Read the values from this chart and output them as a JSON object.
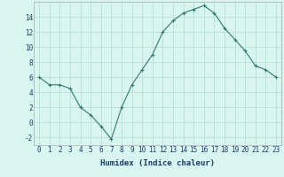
{
  "x": [
    0,
    1,
    2,
    3,
    4,
    5,
    6,
    7,
    8,
    9,
    10,
    11,
    12,
    13,
    14,
    15,
    16,
    17,
    18,
    19,
    20,
    21,
    22,
    23
  ],
  "y": [
    6,
    5,
    5,
    4.5,
    2,
    1,
    -0.5,
    -2.2,
    2,
    5,
    7,
    9,
    12,
    13.5,
    14.5,
    15,
    15.5,
    14.5,
    12.5,
    11,
    9.5,
    7.5,
    7,
    6
  ],
  "line_color": "#2e7d6e",
  "marker": "+",
  "marker_color": "#2e7d6e",
  "bg_color": "#d8f5f0",
  "grid_color": "#b8d8d4",
  "xlabel": "Humidex (Indice chaleur)",
  "xlim": [
    -0.5,
    23.5
  ],
  "ylim": [
    -3,
    16
  ],
  "yticks": [
    -2,
    0,
    2,
    4,
    6,
    8,
    10,
    12,
    14
  ],
  "xticks": [
    0,
    1,
    2,
    3,
    4,
    5,
    6,
    7,
    8,
    9,
    10,
    11,
    12,
    13,
    14,
    15,
    16,
    17,
    18,
    19,
    20,
    21,
    22,
    23
  ],
  "xlabel_fontsize": 6.5,
  "tick_fontsize": 5.5,
  "line_width": 0.8,
  "marker_size": 3.5
}
